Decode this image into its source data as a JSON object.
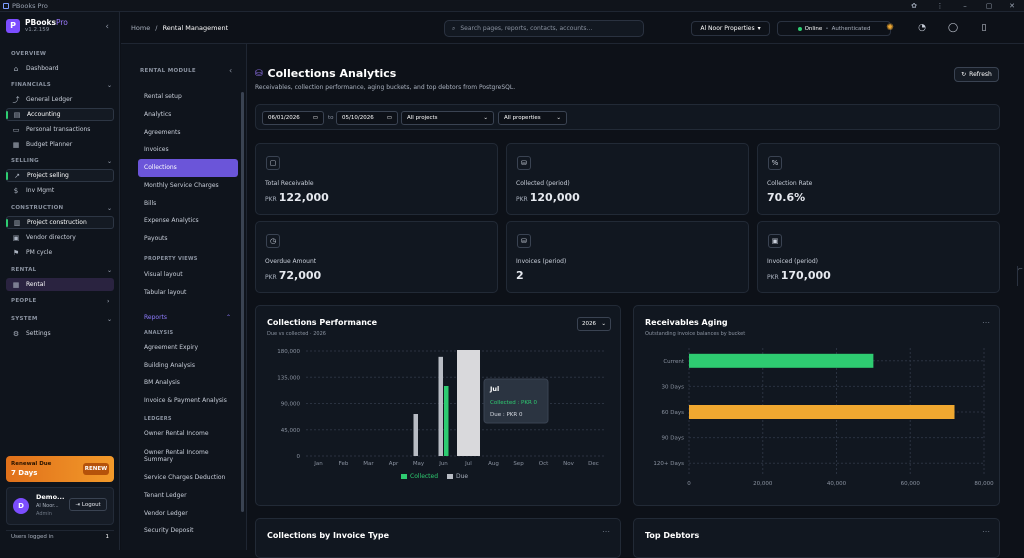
{
  "window": {
    "title": "PBooks Pro"
  },
  "sidebar": {
    "brand": "PBooks",
    "brand_suffix": "Pro",
    "version": "v1.2.159",
    "sections": {
      "overview": "OVERVIEW",
      "financials": "FINANCIALS",
      "selling": "SELLING",
      "construction": "CONSTRUCTION",
      "rental": "RENTAL",
      "people": "PEOPLE",
      "system": "SYSTEM"
    },
    "items": {
      "dashboard": "Dashboard",
      "general_ledger": "General Ledger",
      "accounting": "Accounting",
      "personal_transactions": "Personal transactions",
      "budget_planner": "Budget Planner",
      "project_selling": "Project selling",
      "inv_mgmt": "Inv Mgmt",
      "project_construction": "Project construction",
      "vendor_directory": "Vendor directory",
      "pm_cycle": "PM cycle",
      "rental": "Rental",
      "settings": "Settings"
    },
    "renewal": {
      "title": "Renewal Due",
      "days": "7 Days",
      "button": "RENEW"
    },
    "user": {
      "initial": "D",
      "name": "Demo...",
      "org": "Al Noor...",
      "role": "Admin",
      "logout": "Logout"
    },
    "users_logged": {
      "label": "Users logged in",
      "count": "1"
    }
  },
  "topbar": {
    "breadcrumb_home": "Home",
    "breadcrumb_sep": "/",
    "breadcrumb_current": "Rental Management",
    "search_placeholder": "Search pages, reports, contacts, accounts...",
    "org": "Al Noor Properties",
    "status": "Online",
    "status_sep": "•",
    "auth": "Authenticated"
  },
  "submenu": {
    "header": "RENTAL MODULE",
    "items": [
      "Rental setup",
      "Analytics",
      "Agreements",
      "Invoices",
      "Collections",
      "Monthly Service Charges",
      "Bills",
      "Expense Analytics",
      "Payouts"
    ],
    "property_views_label": "PROPERTY VIEWS",
    "property_views": [
      "Visual layout",
      "Tabular layout"
    ],
    "reports_label": "Reports",
    "analysis_label": "ANALYSIS",
    "analysis": [
      "Agreement Expiry",
      "Building Analysis",
      "BM Analysis",
      "Invoice & Payment Analysis"
    ],
    "ledgers_label": "LEDGERS",
    "ledgers": [
      "Owner Rental Income",
      "Owner Rental Income Summary",
      "Service Charges Deduction",
      "Tenant Ledger",
      "Vendor Ledger",
      "Security Deposit"
    ]
  },
  "page": {
    "title": "Collections Analytics",
    "subtitle": "Receivables, collection performance, aging buckets, and top debtors from PostgreSQL.",
    "refresh": "Refresh"
  },
  "filters": {
    "date_from": "06/01/2026",
    "to": "to",
    "date_to": "05/10/2026",
    "projects": "All projects",
    "properties": "All properties"
  },
  "kpis": [
    {
      "label": "Total Receivable",
      "currency": "PKR",
      "value": "122,000",
      "icon": "document-icon"
    },
    {
      "label": "Collected (period)",
      "currency": "PKR",
      "value": "120,000",
      "icon": "coins-icon"
    },
    {
      "label": "Collection Rate",
      "currency": "",
      "value": "70.6%",
      "icon": "percent-icon"
    },
    {
      "label": "Overdue Amount",
      "currency": "PKR",
      "value": "72,000",
      "icon": "clock-icon"
    },
    {
      "label": "Invoices (period)",
      "currency": "",
      "value": "2",
      "icon": "coins-icon"
    },
    {
      "label": "Invoiced (period)",
      "currency": "PKR",
      "value": "170,000",
      "icon": "wallet-icon"
    }
  ],
  "performance": {
    "title": "Collections Performance",
    "subtitle": "Due vs collected · 2026",
    "year": "2026",
    "tooltip": {
      "month": "Jul",
      "collected": "Collected : PKR 0",
      "due": "Due : PKR 0"
    }
  },
  "aging": {
    "title": "Receivables Aging",
    "subtitle": "Outstanding invoice balances by bucket"
  },
  "bottom": {
    "by_type": "Collections by Invoice Type",
    "debtors": "Top Debtors"
  },
  "colors": {
    "collected": "#2ecc71",
    "due": "#b8bcc4",
    "aging_current": "#2ecc71",
    "aging_60": "#f0a830",
    "accent": "#7c4dff"
  },
  "chart_data": [
    {
      "type": "bar",
      "categories": [
        "Jan",
        "Feb",
        "Mar",
        "Apr",
        "May",
        "Jun",
        "Jul",
        "Aug",
        "Sep",
        "Oct",
        "Nov",
        "Dec"
      ],
      "series": [
        {
          "name": "Collected",
          "values": [
            0,
            0,
            0,
            0,
            0,
            120000,
            0,
            0,
            0,
            0,
            0,
            0
          ]
        },
        {
          "name": "Due",
          "values": [
            0,
            0,
            0,
            0,
            72000,
            170000,
            0,
            0,
            0,
            0,
            0,
            0
          ]
        }
      ],
      "yticks": [
        "0",
        "45,000",
        "90,000",
        "135,000",
        "180,000"
      ],
      "ylim": [
        0,
        180000
      ],
      "legend": "bottom",
      "grid": true
    },
    {
      "type": "bar",
      "orientation": "horizontal",
      "categories": [
        "Current",
        "30 Days",
        "60 Days",
        "90 Days",
        "120+ Days"
      ],
      "values": [
        50000,
        0,
        72000,
        0,
        0
      ],
      "xticks": [
        "0",
        "20,000",
        "40,000",
        "60,000",
        "80,000"
      ],
      "xlim": [
        0,
        80000
      ],
      "grid": true
    }
  ]
}
